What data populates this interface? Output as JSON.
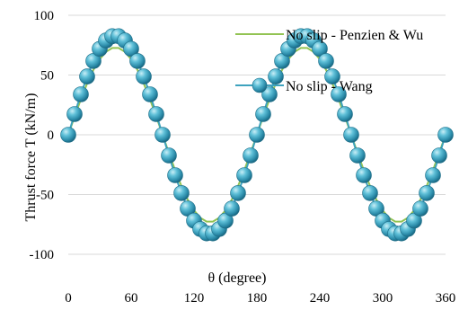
{
  "chart_data": {
    "type": "line",
    "xlabel": "θ (degree)",
    "ylabel": "Thrust force T (kN/m)",
    "xlim": [
      0,
      360
    ],
    "ylim": [
      -100,
      100
    ],
    "x_ticks": [
      0,
      60,
      120,
      180,
      240,
      300,
      360
    ],
    "y_ticks": [
      100,
      50,
      0,
      -50,
      -100
    ],
    "grid": "horizontal",
    "legend": "top-right, inside plot",
    "series": [
      {
        "name": "No slip - Penzien & Wu",
        "color": "#92c353",
        "marker": "none",
        "amplitude": 73,
        "x": [
          0,
          6,
          12,
          18,
          24,
          30,
          36,
          42,
          48,
          54,
          60,
          66,
          72,
          78,
          84,
          90,
          96,
          102,
          108,
          114,
          120,
          126,
          132,
          138,
          144,
          150,
          156,
          162,
          168,
          174,
          180,
          186,
          192,
          198,
          204,
          210,
          216,
          222,
          228,
          234,
          240,
          246,
          252,
          258,
          264,
          270,
          276,
          282,
          288,
          294,
          300,
          306,
          312,
          318,
          324,
          330,
          336,
          342,
          348,
          354,
          360
        ],
        "y": [
          0,
          15.2,
          29.7,
          42.9,
          54.3,
          63.2,
          69.4,
          72.6,
          72.6,
          69.4,
          63.2,
          54.3,
          42.9,
          29.7,
          15.2,
          0,
          -15.2,
          -29.7,
          -42.9,
          -54.3,
          -63.2,
          -69.4,
          -72.6,
          -72.6,
          -69.4,
          -63.2,
          -54.3,
          -42.9,
          -29.7,
          -15.2,
          0,
          15.2,
          29.7,
          42.9,
          54.3,
          63.2,
          69.4,
          72.6,
          72.6,
          69.4,
          63.2,
          54.3,
          42.9,
          29.7,
          15.2,
          0,
          -15.2,
          -29.7,
          -42.9,
          -54.3,
          -63.2,
          -69.4,
          -72.6,
          -72.6,
          -69.4,
          -63.2,
          -54.3,
          -42.9,
          -29.7,
          -15.2,
          0
        ]
      },
      {
        "name": "No slip - Wang",
        "color": "#3ea3be",
        "marker": "sphere",
        "amplitude": 83,
        "x": [
          0,
          6,
          12,
          18,
          24,
          30,
          36,
          42,
          48,
          54,
          60,
          66,
          72,
          78,
          84,
          90,
          96,
          102,
          108,
          114,
          120,
          126,
          132,
          138,
          144,
          150,
          156,
          162,
          168,
          174,
          180,
          186,
          192,
          198,
          204,
          210,
          216,
          222,
          228,
          234,
          240,
          246,
          252,
          258,
          264,
          270,
          276,
          282,
          288,
          294,
          300,
          306,
          312,
          318,
          324,
          330,
          336,
          342,
          348,
          354,
          360
        ],
        "y": [
          0,
          17.3,
          33.8,
          48.8,
          61.7,
          71.9,
          78.9,
          82.5,
          82.5,
          78.9,
          71.9,
          61.7,
          48.8,
          33.8,
          17.3,
          0,
          -17.3,
          -33.8,
          -48.8,
          -61.7,
          -71.9,
          -78.9,
          -82.5,
          -82.5,
          -78.9,
          -71.9,
          -61.7,
          -48.8,
          -33.8,
          -17.3,
          0,
          17.3,
          33.8,
          48.8,
          61.7,
          71.9,
          78.9,
          82.5,
          82.5,
          78.9,
          71.9,
          61.7,
          48.8,
          33.8,
          17.3,
          0,
          -17.3,
          -33.8,
          -48.8,
          -61.7,
          -71.9,
          -78.9,
          -82.5,
          -82.5,
          -78.9,
          -71.9,
          -61.7,
          -48.8,
          -33.8,
          -17.3,
          0
        ]
      }
    ]
  }
}
